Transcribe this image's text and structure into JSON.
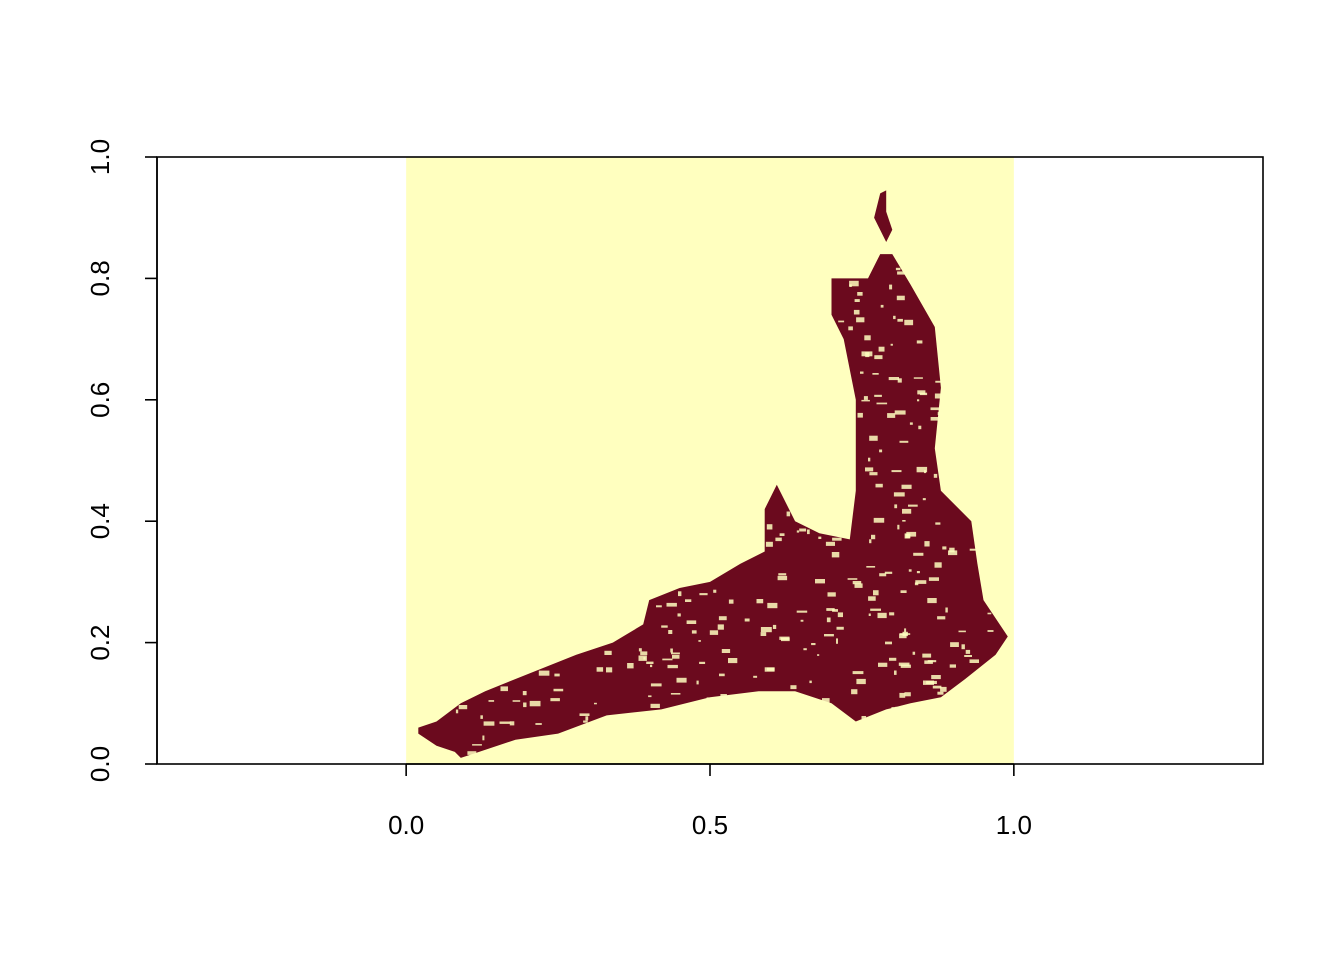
{
  "chart_data": {
    "type": "heatmap",
    "title": "",
    "xlabel": "",
    "ylabel": "",
    "xlim": [
      -0.41,
      1.41
    ],
    "ylim": [
      0,
      1
    ],
    "grid": false,
    "legend": "none",
    "raster_extent": {
      "x": [
        0,
        1
      ],
      "y": [
        0,
        1
      ]
    },
    "x_ticks": [
      {
        "value": 0.0,
        "label": "0.0"
      },
      {
        "value": 0.5,
        "label": "0.5"
      },
      {
        "value": 1.0,
        "label": "1.0"
      }
    ],
    "y_ticks": [
      {
        "value": 0.0,
        "label": "0.0"
      },
      {
        "value": 0.2,
        "label": "0.2"
      },
      {
        "value": 0.4,
        "label": "0.4"
      },
      {
        "value": 0.6,
        "label": "0.6"
      },
      {
        "value": 0.8,
        "label": "0.8"
      },
      {
        "value": 1.0,
        "label": "1.0"
      }
    ],
    "classes": [
      {
        "value": 0,
        "color": "#FFFFBF"
      },
      {
        "value": 1,
        "color": "#6B0A1E"
      }
    ],
    "region_outline": [
      [
        0.02,
        0.06
      ],
      [
        0.05,
        0.07
      ],
      [
        0.09,
        0.1
      ],
      [
        0.13,
        0.12
      ],
      [
        0.18,
        0.14
      ],
      [
        0.23,
        0.16
      ],
      [
        0.28,
        0.18
      ],
      [
        0.34,
        0.2
      ],
      [
        0.39,
        0.23
      ],
      [
        0.4,
        0.27
      ],
      [
        0.45,
        0.29
      ],
      [
        0.5,
        0.3
      ],
      [
        0.55,
        0.33
      ],
      [
        0.59,
        0.35
      ],
      [
        0.59,
        0.42
      ],
      [
        0.61,
        0.46
      ],
      [
        0.64,
        0.4
      ],
      [
        0.68,
        0.38
      ],
      [
        0.73,
        0.37
      ],
      [
        0.74,
        0.45
      ],
      [
        0.74,
        0.6
      ],
      [
        0.72,
        0.7
      ],
      [
        0.7,
        0.74
      ],
      [
        0.7,
        0.8
      ],
      [
        0.76,
        0.8
      ],
      [
        0.78,
        0.84
      ],
      [
        0.8,
        0.84
      ],
      [
        0.83,
        0.79
      ],
      [
        0.87,
        0.72
      ],
      [
        0.88,
        0.62
      ],
      [
        0.87,
        0.52
      ],
      [
        0.88,
        0.45
      ],
      [
        0.93,
        0.4
      ],
      [
        0.94,
        0.33
      ],
      [
        0.95,
        0.27
      ],
      [
        0.99,
        0.21
      ],
      [
        0.97,
        0.18
      ],
      [
        0.92,
        0.14
      ],
      [
        0.88,
        0.11
      ],
      [
        0.83,
        0.1
      ],
      [
        0.79,
        0.09
      ],
      [
        0.74,
        0.07
      ],
      [
        0.7,
        0.1
      ],
      [
        0.64,
        0.12
      ],
      [
        0.58,
        0.12
      ],
      [
        0.5,
        0.11
      ],
      [
        0.42,
        0.09
      ],
      [
        0.33,
        0.08
      ],
      [
        0.25,
        0.05
      ],
      [
        0.18,
        0.04
      ],
      [
        0.12,
        0.02
      ],
      [
        0.09,
        0.01
      ],
      [
        0.08,
        0.02
      ],
      [
        0.05,
        0.03
      ],
      [
        0.02,
        0.05
      ]
    ],
    "region_outline_2": [
      [
        0.78,
        0.94
      ],
      [
        0.77,
        0.9
      ],
      [
        0.79,
        0.86
      ],
      [
        0.8,
        0.88
      ],
      [
        0.79,
        0.91
      ],
      [
        0.79,
        0.945
      ]
    ]
  }
}
